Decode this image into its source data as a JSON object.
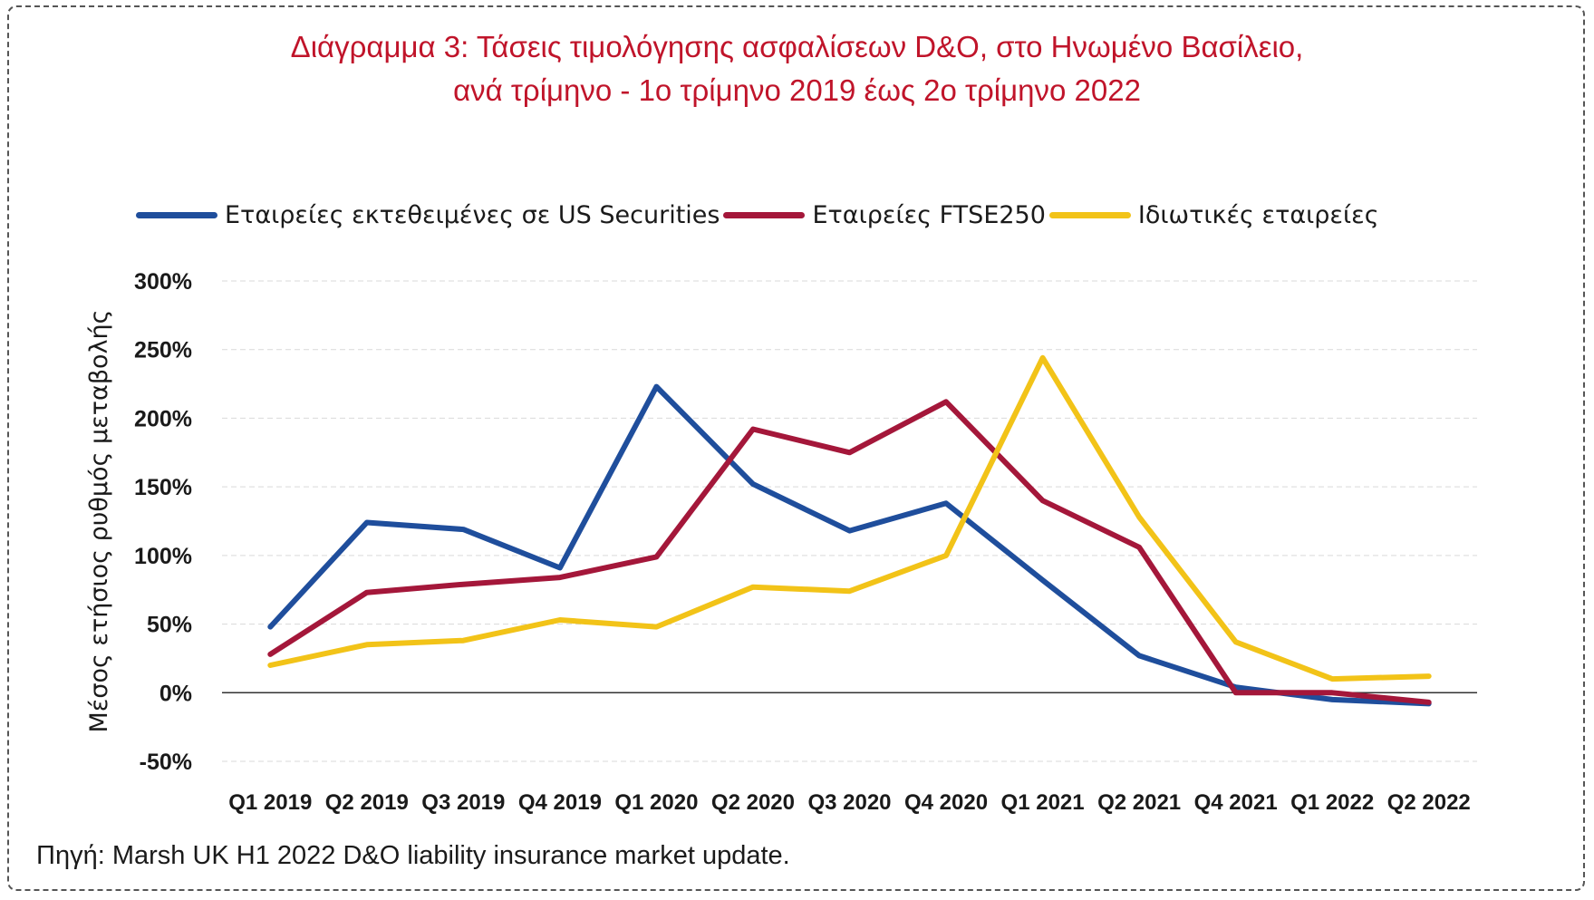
{
  "title_line1": "Διάγραμμα 3: Τάσεις τιμολόγησης ασφαλίσεων D&O, στο Ηνωμένο Βασίλειο,",
  "title_line2": "ανά τρίμηνο - 1ο τρίμηνο 2019 έως 2ο τρίμηνο 2022",
  "source": "Πηγή: Marsh UK H1 2022 D&O liability insurance market update.",
  "chart_data": {
    "type": "line",
    "ylabel": "Μέσος ετήσιος ρυθμός μεταβολής",
    "ylim": [
      -50,
      300
    ],
    "yticks": [
      -50,
      0,
      50,
      100,
      150,
      200,
      250,
      300
    ],
    "ytick_labels": [
      "-50%",
      "0%",
      "50%",
      "100%",
      "150%",
      "200%",
      "250%",
      "300%"
    ],
    "grid": true,
    "legend_position": "top",
    "categories": [
      "Q1 2019",
      "Q2 2019",
      "Q3 2019",
      "Q4 2019",
      "Q1 2020",
      "Q2 2020",
      "Q3 2020",
      "Q4 2020",
      "Q1 2021",
      "Q2 2021",
      "Q4 2021",
      "Q1 2022",
      "Q2 2022"
    ],
    "series": [
      {
        "name": "Εταιρείες εκτεθειμένες σε US Securities",
        "color": "#1f4e9c",
        "values": [
          48,
          124,
          119,
          91,
          223,
          152,
          118,
          138,
          82,
          27,
          4,
          -5,
          -8
        ]
      },
      {
        "name": "Εταιρείες FTSE250",
        "color": "#a4173a",
        "values": [
          28,
          73,
          79,
          84,
          99,
          192,
          175,
          212,
          140,
          106,
          0,
          0,
          -7
        ]
      },
      {
        "name": "Ιδιωτικές εταιρείες",
        "color": "#f2c318",
        "values": [
          20,
          35,
          38,
          53,
          48,
          77,
          74,
          100,
          244,
          128,
          37,
          10,
          12
        ]
      }
    ]
  }
}
